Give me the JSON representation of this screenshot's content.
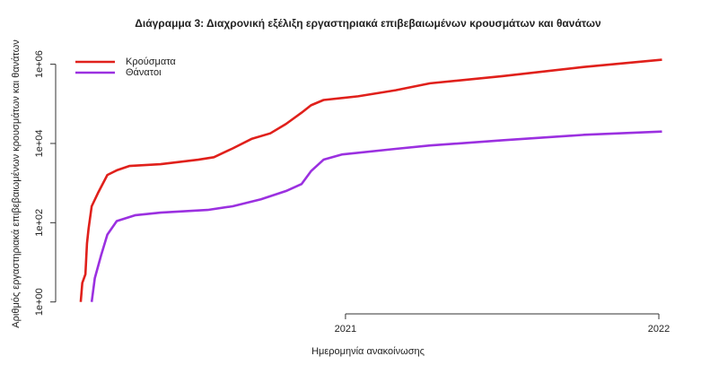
{
  "chart_data": {
    "type": "line",
    "title": "Διάγραμμα 3: Διαχρονική εξέλιξη εργαστηριακά επιβεβαιωμένων κρουσμάτων και θανάτων",
    "xlabel": "Ημερομηνία ανακοίνωσης",
    "ylabel": "Αριθμός εργαστηριακά επιβεβαιωμένων κρουσμάτων και θανάτων",
    "log_y": true,
    "legend": "top-left",
    "xlim": [
      2020.075,
      2022.083
    ],
    "xticks": [
      2021,
      2022
    ],
    "ylim": [
      0.5,
      4000000
    ],
    "yticks": [
      {
        "value": 1,
        "label": "1e+00"
      },
      {
        "value": 100,
        "label": "1e+02"
      },
      {
        "value": 10000,
        "label": "1e+04"
      },
      {
        "value": 1000000,
        "label": "1e+06"
      }
    ],
    "series": [
      {
        "name": "Κρούσματα",
        "color": "#e0201b",
        "x": [
          2020.155,
          2020.16,
          2020.17,
          2020.175,
          2020.18,
          2020.19,
          2020.21,
          2020.24,
          2020.27,
          2020.31,
          2020.41,
          2020.53,
          2020.58,
          2020.64,
          2020.7,
          2020.76,
          2020.81,
          2020.86,
          2020.89,
          2020.93,
          2021.04,
          2021.16,
          2021.27,
          2021.5,
          2021.76,
          2022.01
        ],
        "values": [
          1,
          3,
          5,
          30,
          70,
          260,
          560,
          1600,
          2100,
          2700,
          3000,
          3900,
          4500,
          7500,
          13000,
          18000,
          31000,
          60000,
          92000,
          125000,
          155000,
          220000,
          330000,
          500000,
          850000,
          1300000
        ]
      },
      {
        "name": "Θάνατοι",
        "color": "#9b30e0",
        "x": [
          2020.19,
          2020.2,
          2020.22,
          2020.24,
          2020.27,
          2020.33,
          2020.41,
          2020.56,
          2020.64,
          2020.73,
          2020.81,
          2020.86,
          2020.89,
          2020.93,
          2020.99,
          2021.16,
          2021.27,
          2021.5,
          2021.76,
          2022.01
        ],
        "values": [
          1,
          4,
          15,
          50,
          110,
          155,
          180,
          210,
          260,
          390,
          630,
          950,
          2000,
          3900,
          5300,
          7300,
          8900,
          12000,
          16500,
          20000
        ]
      }
    ]
  }
}
